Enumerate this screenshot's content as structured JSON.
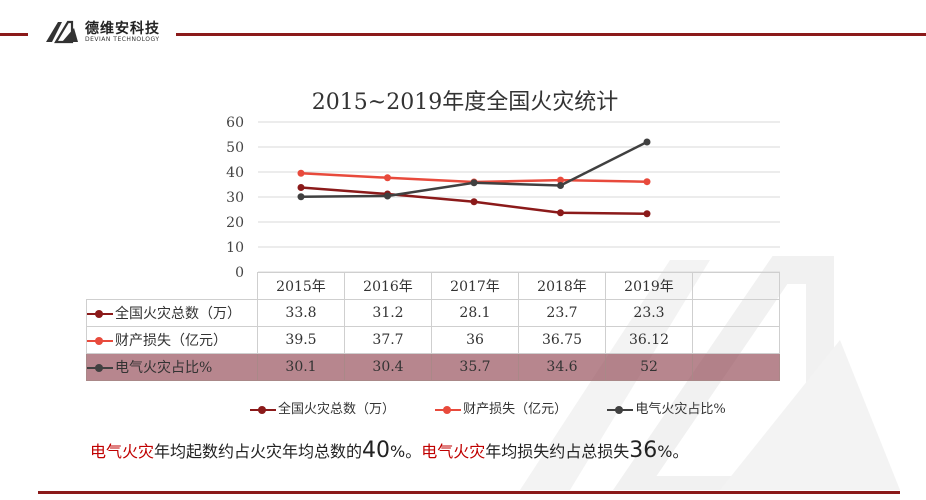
{
  "header": {
    "company_name": "德维安科技",
    "company_en": "DEVIAN TECHNOLOGY"
  },
  "colors": {
    "brand": "#8b1a1a",
    "series_fires": "#8b1a1a",
    "series_loss": "#e84a3c",
    "series_electric": "#404040",
    "highlight_row": "#8b3c48",
    "emphasis_text": "#c00000"
  },
  "chart_data": {
    "type": "line",
    "title": "2015~2019年度全国火灾统计",
    "categories": [
      "2015年",
      "2016年",
      "2017年",
      "2018年",
      "2019年"
    ],
    "ylim": [
      0,
      60
    ],
    "yticks": [
      "60",
      "50",
      "40",
      "30",
      "20",
      "10",
      "0"
    ],
    "grid": true,
    "legend_placement": "bottom",
    "series": [
      {
        "name": "全国火灾总数（万）",
        "values": [
          33.8,
          31.2,
          28.1,
          23.7,
          23.3
        ],
        "labels": [
          "33.8",
          "31.2",
          "28.1",
          "23.7",
          "23.3"
        ]
      },
      {
        "name": "财产损失（亿元）",
        "values": [
          39.5,
          37.7,
          36,
          36.75,
          36.12
        ],
        "labels": [
          "39.5",
          "37.7",
          "36",
          "36.75",
          "36.12"
        ]
      },
      {
        "name": "电气火灾占比%",
        "values": [
          30.1,
          30.4,
          35.7,
          34.6,
          52
        ],
        "labels": [
          "30.1",
          "30.4",
          "35.7",
          "34.6",
          "52"
        ]
      }
    ]
  },
  "summary": {
    "part1_red": "电气火灾",
    "part2": "年均起数约占火灾年均总数的",
    "part3_big": "40",
    "part4": "%。",
    "part5_red": "电气火灾",
    "part6": "年均损失约占总损失",
    "part7_big": "36",
    "part8": "%。"
  }
}
